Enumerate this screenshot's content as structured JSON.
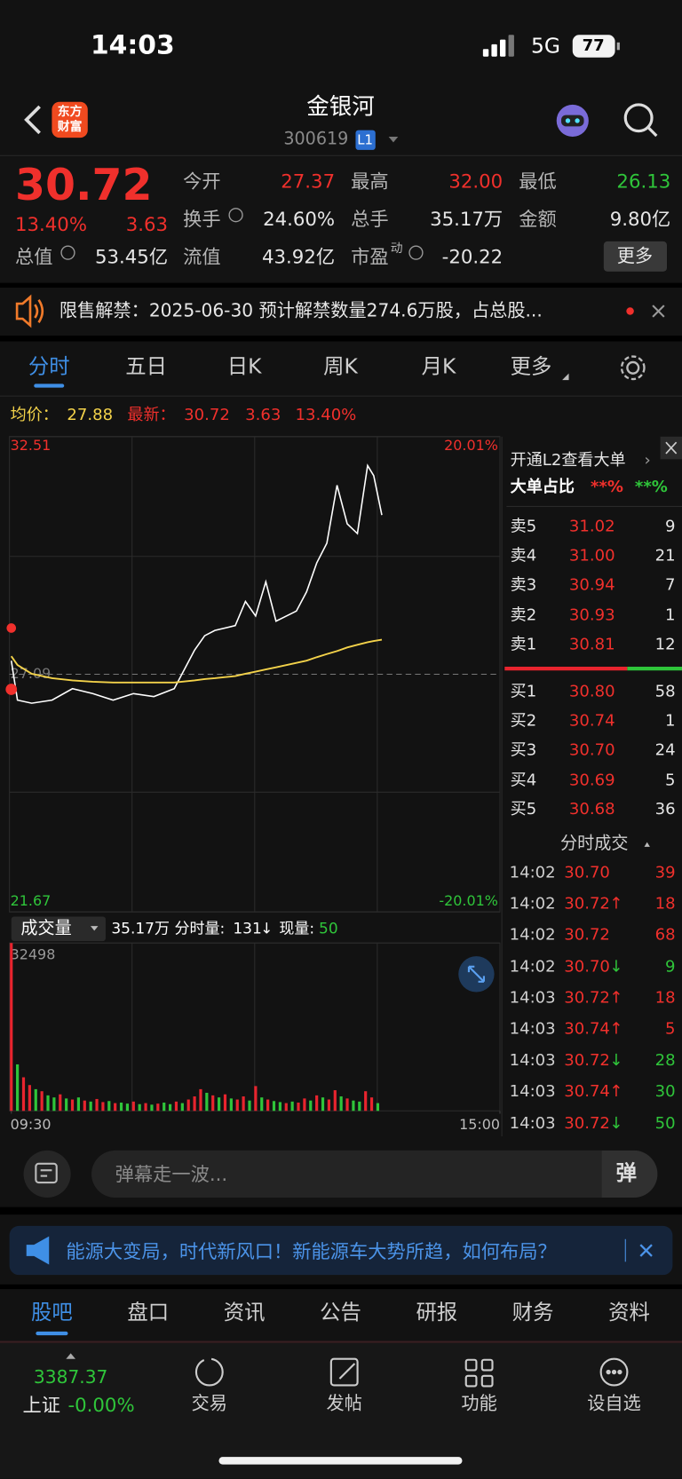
{
  "status": {
    "time": "14:03",
    "network": "5G",
    "battery": "77"
  },
  "header": {
    "logo": [
      "东方",
      "财富"
    ],
    "name": "金银河",
    "code": "300619",
    "level": "L1"
  },
  "quote": {
    "price": "30.72",
    "change_pct": "13.40%",
    "change": "3.63",
    "fields": [
      {
        "label": "今开",
        "value": "27.37",
        "color": "#f0302c"
      },
      {
        "label": "最高",
        "value": "32.00",
        "color": "#f0302c"
      },
      {
        "label": "最低",
        "value": "26.13",
        "color": "#2fc53a"
      },
      {
        "label": "换手",
        "value": "24.60%",
        "color": "#e6e6e6"
      },
      {
        "label": "总手",
        "value": "35.17万",
        "color": "#e6e6e6"
      },
      {
        "label": "金额",
        "value": "9.80亿",
        "color": "#e6e6e6"
      },
      {
        "label": "总值",
        "value": "53.45亿",
        "color": "#e6e6e6"
      },
      {
        "label": "流值",
        "value": "43.92亿",
        "color": "#e6e6e6"
      },
      {
        "label": "市盈",
        "sup": "动",
        "value": "-20.22",
        "color": "#e6e6e6"
      }
    ],
    "more": "更多"
  },
  "notice": "限售解禁：2025-06-30 预计解禁数量274.6万股，占总股...",
  "tabs": [
    "分时",
    "五日",
    "日K",
    "周K",
    "月K",
    "更多"
  ],
  "summary": {
    "avg_label": "均价：",
    "avg": "27.88",
    "latest_label": "最新：",
    "latest": "30.72",
    "change": "3.63",
    "pct": "13.40%"
  },
  "chart_data": [
    {
      "type": "line",
      "x": [
        0,
        3,
        10,
        20,
        30,
        40,
        50,
        60,
        70,
        80,
        90,
        95,
        100,
        110,
        115,
        120,
        125,
        130,
        140,
        145,
        150,
        155,
        160,
        165,
        170,
        175,
        178,
        182
      ],
      "series": [
        {
          "color": "#ffffff",
          "values": [
            27.4,
            26.5,
            26.43,
            26.5,
            26.76,
            26.65,
            26.5,
            26.65,
            26.58,
            26.76,
            27.64,
            27.97,
            28.09,
            28.2,
            28.75,
            28.42,
            29.2,
            28.3,
            28.53,
            28.97,
            29.63,
            30.08,
            31.4,
            30.52,
            30.3,
            31.85,
            31.62,
            30.72
          ]
        },
        {
          "color": "#f3d24a",
          "values": [
            27.5,
            27.3,
            27.1,
            27.0,
            26.95,
            26.92,
            26.9,
            26.9,
            26.9,
            26.9,
            26.95,
            26.98,
            27.0,
            27.05,
            27.1,
            27.15,
            27.2,
            27.25,
            27.35,
            27.4,
            27.48,
            27.55,
            27.62,
            27.7,
            27.76,
            27.82,
            27.85,
            27.88
          ]
        }
      ],
      "xlim": [
        0,
        240
      ],
      "ylim": [
        21.67,
        32.51
      ],
      "yticks": [
        32.51,
        27.09,
        21.67
      ],
      "y2lim": [
        -20.01,
        20.01
      ],
      "y2ticks": [
        {
          "value": 20.01,
          "label": "20.01%"
        },
        {
          "value": -20.01,
          "label": "-20.01%"
        }
      ]
    },
    {
      "type": "bar",
      "title": "成交量",
      "total": "35.17万",
      "minute_label": "分时量:",
      "minute_value": "131",
      "minute_dir": "↓",
      "now_label": "现量:",
      "now_value": "50",
      "x": [
        0,
        3,
        6,
        9,
        12,
        15,
        18,
        21,
        24,
        27,
        30,
        33,
        36,
        39,
        42,
        45,
        48,
        51,
        54,
        57,
        60,
        63,
        66,
        69,
        72,
        75,
        78,
        81,
        84,
        87,
        90,
        93,
        96,
        99,
        102,
        105,
        108,
        111,
        114,
        117,
        120,
        123,
        126,
        129,
        132,
        135,
        138,
        141,
        144,
        147,
        150,
        153,
        156,
        159,
        162,
        165,
        168,
        171,
        174,
        177,
        180
      ],
      "values": [
        32498,
        9000,
        6500,
        5000,
        4200,
        3800,
        3000,
        2600,
        3200,
        2400,
        2200,
        2600,
        2000,
        1800,
        2300,
        1700,
        1900,
        1500,
        1600,
        1400,
        1800,
        1300,
        1500,
        1200,
        1400,
        1600,
        1300,
        1800,
        1500,
        2200,
        2800,
        4200,
        3500,
        3000,
        2600,
        3200,
        2400,
        2200,
        2800,
        2000,
        4800,
        2600,
        2200,
        1900,
        1700,
        1500,
        1800,
        1600,
        2400,
        2000,
        3000,
        2600,
        2200,
        4000,
        2800,
        2400,
        2000,
        1800,
        3800,
        2600,
        1500
      ],
      "colors": [
        "#e8242e",
        "#2fc53a",
        "#e8242e",
        "#e8242e",
        "#2fc53a",
        "#e8242e",
        "#2fc53a",
        "#2fc53a",
        "#e8242e",
        "#2fc53a",
        "#e8242e",
        "#2fc53a",
        "#e8242e",
        "#2fc53a",
        "#e8242e",
        "#e8242e",
        "#2fc53a",
        "#e8242e",
        "#2fc53a",
        "#2fc53a",
        "#e8242e",
        "#2fc53a",
        "#e8242e",
        "#2fc53a",
        "#e8242e",
        "#2fc53a",
        "#2fc53a",
        "#e8242e",
        "#2fc53a",
        "#e8242e",
        "#e8242e",
        "#e8242e",
        "#2fc53a",
        "#e8242e",
        "#2fc53a",
        "#e8242e",
        "#2fc53a",
        "#e8242e",
        "#e8242e",
        "#2fc53a",
        "#e8242e",
        "#2fc53a",
        "#e8242e",
        "#2fc53a",
        "#2fc53a",
        "#e8242e",
        "#2fc53a",
        "#e8242e",
        "#e8242e",
        "#2fc53a",
        "#e8242e",
        "#2fc53a",
        "#e8242e",
        "#e8242e",
        "#2fc53a",
        "#e8242e",
        "#2fc53a",
        "#2fc53a",
        "#e8242e",
        "#e8242e",
        "#2fc53a"
      ],
      "xlim": [
        0,
        240
      ],
      "ylim": [
        0,
        32498
      ],
      "yticks": [
        32498
      ],
      "xticks": [
        {
          "value": 0,
          "label": "09:30"
        },
        {
          "value": 240,
          "label": "15:00"
        }
      ]
    }
  ],
  "order_book": {
    "promo": "开通L2查看大单",
    "big_label": "大单占比",
    "big_buy": "**%",
    "big_sell": "**%",
    "asks": [
      {
        "label": "卖5",
        "price": "31.02",
        "vol": "9"
      },
      {
        "label": "卖4",
        "price": "31.00",
        "vol": "21"
      },
      {
        "label": "卖3",
        "price": "30.94",
        "vol": "7"
      },
      {
        "label": "卖2",
        "price": "30.93",
        "vol": "1"
      },
      {
        "label": "卖1",
        "price": "30.81",
        "vol": "12"
      }
    ],
    "bids": [
      {
        "label": "买1",
        "price": "30.80",
        "vol": "58"
      },
      {
        "label": "买2",
        "price": "30.74",
        "vol": "1"
      },
      {
        "label": "买3",
        "price": "30.70",
        "vol": "24"
      },
      {
        "label": "买4",
        "price": "30.69",
        "vol": "5"
      },
      {
        "label": "买5",
        "price": "30.68",
        "vol": "36"
      }
    ]
  },
  "trades": {
    "title": "分时成交",
    "rows": [
      {
        "time": "14:02",
        "price": "30.70",
        "vol": "39",
        "color": "#f0302c"
      },
      {
        "time": "14:02",
        "price": "30.72",
        "dir": "↑",
        "vol": "18",
        "color": "#f0302c"
      },
      {
        "time": "14:02",
        "price": "30.72",
        "vol": "68",
        "color": "#f0302c"
      },
      {
        "time": "14:02",
        "price": "30.70",
        "dir": "↓",
        "vol": "9",
        "color": "#2fc53a"
      },
      {
        "time": "14:03",
        "price": "30.72",
        "dir": "↑",
        "vol": "18",
        "color": "#f0302c"
      },
      {
        "time": "14:03",
        "price": "30.74",
        "dir": "↑",
        "vol": "5",
        "color": "#f0302c"
      },
      {
        "time": "14:03",
        "price": "30.72",
        "dir": "↓",
        "vol": "28",
        "color": "#2fc53a"
      },
      {
        "time": "14:03",
        "price": "30.74",
        "dir": "↑",
        "vol": "30",
        "color": "#2fc53a"
      },
      {
        "time": "14:03",
        "price": "30.72",
        "dir": "↓",
        "vol": "50",
        "color": "#2fc53a"
      }
    ]
  },
  "comment": {
    "placeholder": "弹幕走一波...",
    "button": "弹"
  },
  "banner": "能源大变局，时代新风口！新能源车大势所趋，如何布局？",
  "bottom_tabs": [
    "股吧",
    "盘口",
    "资讯",
    "公告",
    "研报",
    "财务",
    "资料"
  ],
  "index": {
    "value": "3387.37",
    "name": "上证",
    "change": "-0.00%"
  },
  "nav": [
    "交易",
    "发帖",
    "功能",
    "设自选"
  ]
}
